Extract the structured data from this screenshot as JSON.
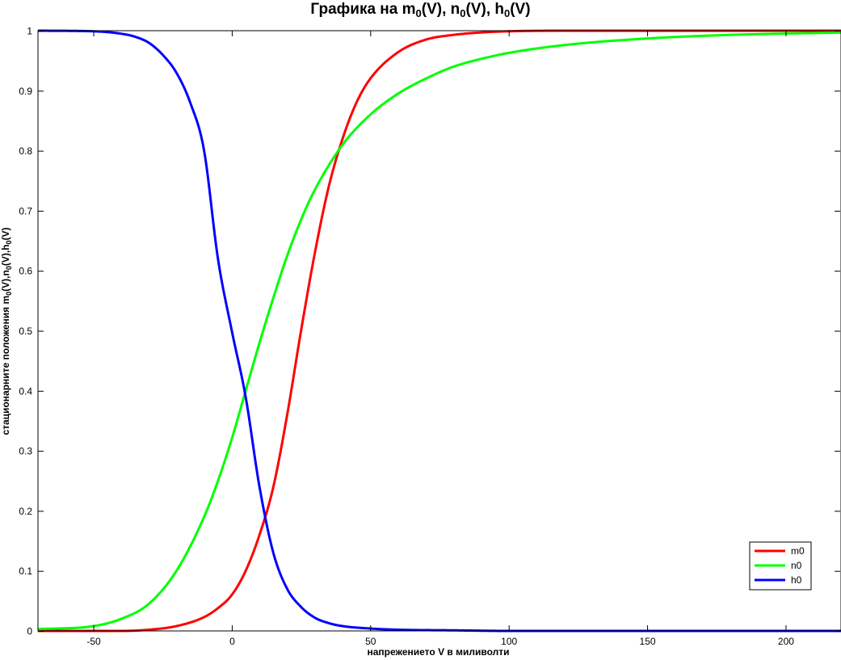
{
  "chart_data": {
    "type": "line",
    "title": {
      "prefix": "Графика на ",
      "parts": [
        {
          "base": "m",
          "sub": "0",
          "suffix": "(V), "
        },
        {
          "base": "n",
          "sub": "0",
          "suffix": "(V), "
        },
        {
          "base": "h",
          "sub": "0",
          "suffix": "(V)"
        }
      ]
    },
    "xlabel": "напрежението V в миливолти",
    "ylabel": {
      "prefix": "стационарните положения ",
      "parts": [
        {
          "base": "m",
          "sub": "0",
          "suffix": "(V),"
        },
        {
          "base": "n",
          "sub": "0",
          "suffix": "(V),"
        },
        {
          "base": "h",
          "sub": "0",
          "suffix": "(V)"
        }
      ]
    },
    "xlim": [
      -70,
      220
    ],
    "ylim": [
      0,
      1
    ],
    "xticks": [
      -50,
      0,
      50,
      100,
      150,
      200
    ],
    "xtick_labels": [
      "-50",
      "0",
      "50",
      "100",
      "150",
      "200"
    ],
    "yticks": [
      0,
      0.1,
      0.2,
      0.3,
      0.4,
      0.5,
      0.6,
      0.7,
      0.8,
      0.9,
      1
    ],
    "ytick_labels": [
      "0",
      "0.1",
      "0.2",
      "0.3",
      "0.4",
      "0.5",
      "0.6",
      "0.7",
      "0.8",
      "0.9",
      "1"
    ],
    "grid": false,
    "legend_position": "bottom-right",
    "series": [
      {
        "name": "m0",
        "color": "#ff0000",
        "x": [
          -70,
          -50,
          -40,
          -30,
          -20,
          -10,
          -5,
          0,
          5,
          10,
          15,
          20,
          25,
          30,
          35,
          40,
          45,
          50,
          60,
          70,
          80,
          90,
          100,
          120,
          150,
          180,
          220
        ],
        "y": [
          0.0,
          0.0,
          0.0,
          0.002,
          0.008,
          0.023,
          0.038,
          0.06,
          0.1,
          0.16,
          0.24,
          0.36,
          0.5,
          0.63,
          0.74,
          0.82,
          0.88,
          0.92,
          0.964,
          0.985,
          0.993,
          0.997,
          0.999,
          1.0,
          1.0,
          1.0,
          1.0
        ]
      },
      {
        "name": "n0",
        "color": "#00ff00",
        "x": [
          -70,
          -50,
          -40,
          -30,
          -20,
          -10,
          -5,
          0,
          5,
          10,
          15,
          20,
          25,
          30,
          40,
          50,
          60,
          70,
          80,
          90,
          100,
          120,
          150,
          180,
          220
        ],
        "y": [
          0.003,
          0.008,
          0.02,
          0.045,
          0.1,
          0.19,
          0.25,
          0.32,
          0.4,
          0.48,
          0.555,
          0.625,
          0.685,
          0.735,
          0.81,
          0.86,
          0.895,
          0.92,
          0.94,
          0.953,
          0.963,
          0.976,
          0.987,
          0.993,
          0.997
        ]
      },
      {
        "name": "h0",
        "color": "#0000ff",
        "x": [
          -70,
          -50,
          -40,
          -35,
          -30,
          -25,
          -20,
          -15,
          -10,
          -5,
          0,
          5,
          10,
          15,
          20,
          25,
          30,
          35,
          40,
          50,
          60,
          80,
          100,
          150,
          220
        ],
        "y": [
          1.0,
          0.999,
          0.995,
          0.99,
          0.98,
          0.96,
          0.93,
          0.88,
          0.8,
          0.62,
          0.5,
          0.39,
          0.24,
          0.13,
          0.07,
          0.04,
          0.022,
          0.013,
          0.008,
          0.004,
          0.002,
          0.001,
          0.0,
          0.0,
          0.0
        ]
      }
    ]
  }
}
